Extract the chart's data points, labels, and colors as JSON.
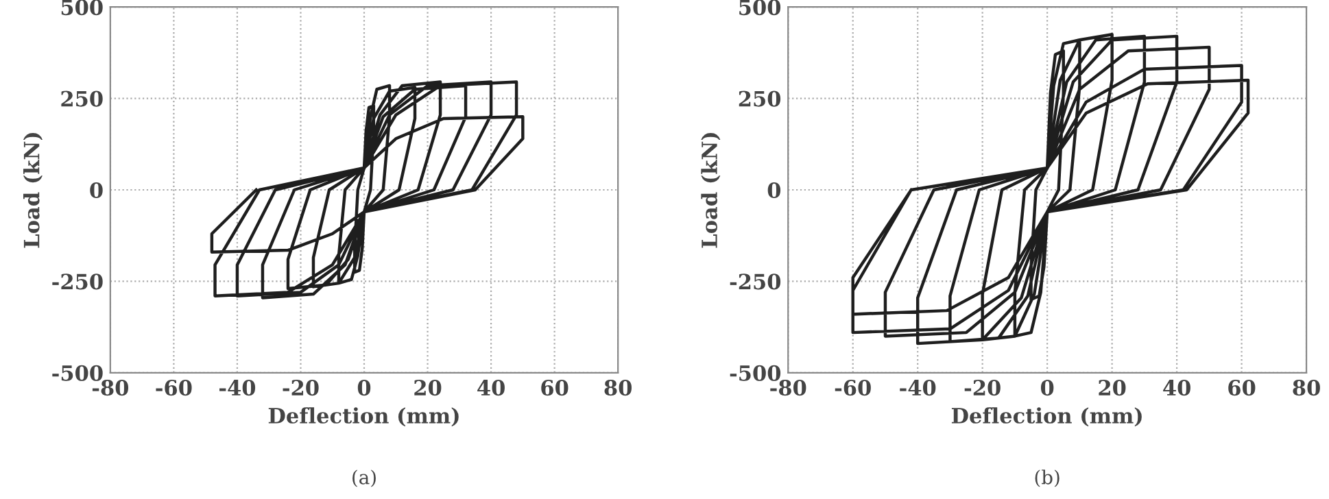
{
  "chart_data": [
    {
      "type": "line",
      "xlabel": "Deflection (mm)",
      "ylabel": "Load (kN)",
      "annotations": [
        "(a)"
      ],
      "xlim": [
        -80,
        80
      ],
      "ylim": [
        -500,
        500
      ],
      "xticks": [
        -80,
        -60,
        -40,
        -20,
        0,
        20,
        40,
        60,
        80
      ],
      "yticks": [
        -500,
        -250,
        0,
        250,
        500
      ],
      "grid": true,
      "legend": false,
      "line_style": "solid",
      "marker": "none",
      "series": [
        {
          "color": "#1e1e1e",
          "x": [
            0,
            0.6,
            1.5,
            3,
            3,
            2,
            0,
            -0.6,
            -1.5,
            -3,
            -3,
            -2,
            0,
            2,
            4,
            8,
            8,
            6,
            0,
            -2,
            -4,
            -8,
            -8,
            -6,
            0,
            3,
            8,
            16,
            16,
            11,
            0,
            -3,
            -8,
            -16,
            -16,
            -11,
            0,
            5,
            12,
            24,
            24,
            17,
            0,
            -5,
            -12,
            -24,
            -24,
            -17,
            0,
            6,
            16,
            32,
            32,
            22,
            0,
            -6,
            -16,
            -32,
            -32,
            -22,
            0,
            8,
            20,
            40,
            40,
            28,
            0,
            -8,
            -20,
            -40,
            -40,
            -28,
            0,
            10,
            24,
            48,
            48,
            34,
            0,
            -10,
            -24,
            -47,
            -47,
            -33,
            0,
            10,
            25,
            50,
            50,
            35,
            0,
            -10,
            -24,
            -48,
            -48,
            -34
          ],
          "values": [
            60,
            160,
            225,
            230,
            160,
            0,
            -60,
            -160,
            -220,
            -225,
            -160,
            0,
            60,
            200,
            275,
            285,
            200,
            0,
            -60,
            -180,
            -245,
            -255,
            -180,
            0,
            60,
            195,
            270,
            280,
            195,
            0,
            -60,
            -185,
            -255,
            -265,
            -185,
            0,
            60,
            205,
            285,
            295,
            205,
            0,
            -60,
            -190,
            -260,
            -270,
            -190,
            0,
            60,
            200,
            275,
            285,
            200,
            0,
            -60,
            -205,
            -285,
            -295,
            -205,
            0,
            60,
            205,
            285,
            295,
            205,
            0,
            -60,
            -205,
            -280,
            -290,
            -205,
            0,
            60,
            205,
            285,
            295,
            205,
            0,
            -60,
            -205,
            -280,
            -290,
            -205,
            0,
            60,
            140,
            195,
            200,
            140,
            0,
            -60,
            -120,
            -165,
            -170,
            -120,
            0
          ]
        }
      ]
    },
    {
      "type": "line",
      "xlabel": "Deflection (mm)",
      "ylabel": "Load (kN)",
      "annotations": [
        "(b)"
      ],
      "xlim": [
        -80,
        80
      ],
      "ylim": [
        -500,
        500
      ],
      "xticks": [
        -80,
        -60,
        -40,
        -20,
        0,
        20,
        40,
        60,
        80
      ],
      "yticks": [
        -500,
        -250,
        0,
        250,
        500
      ],
      "grid": true,
      "legend": false,
      "line_style": "solid",
      "marker": "none",
      "series": [
        {
          "color": "#1e1e1e",
          "x": [
            0,
            1,
            2.5,
            5,
            5,
            3.5,
            0,
            -1,
            -2.5,
            -5,
            -5,
            -3.5,
            0,
            2,
            5,
            10,
            10,
            7,
            0,
            -2,
            -5,
            -10,
            -10,
            -7,
            0,
            4,
            10,
            20,
            20,
            14,
            0,
            -4,
            -10,
            -20,
            -20,
            -14,
            0,
            6,
            15,
            30,
            30,
            21,
            0,
            -6,
            -15,
            -30,
            -30,
            -21,
            0,
            8,
            20,
            40,
            40,
            28,
            0,
            -8,
            -20,
            -40,
            -40,
            -28,
            0,
            10,
            25,
            50,
            50,
            35,
            0,
            -10,
            -25,
            -50,
            -50,
            -35,
            0,
            12,
            30,
            60,
            60,
            42,
            0,
            -12,
            -30,
            -60,
            -60,
            -42,
            0,
            12,
            31,
            62,
            62,
            43,
            0,
            -12,
            -31,
            -60,
            -60,
            -42
          ],
          "values": [
            60,
            265,
            370,
            380,
            265,
            0,
            -60,
            -210,
            -290,
            -300,
            -210,
            0,
            60,
            285,
            400,
            410,
            285,
            0,
            -60,
            -280,
            -390,
            -400,
            -280,
            0,
            60,
            300,
            410,
            425,
            300,
            0,
            -60,
            -285,
            -400,
            -410,
            -285,
            0,
            60,
            295,
            410,
            420,
            295,
            0,
            -60,
            -290,
            -405,
            -415,
            -290,
            0,
            60,
            295,
            410,
            420,
            295,
            0,
            -60,
            -295,
            -410,
            -420,
            -295,
            0,
            60,
            275,
            380,
            390,
            275,
            0,
            -60,
            -280,
            -390,
            -400,
            -280,
            0,
            60,
            240,
            330,
            340,
            240,
            0,
            -60,
            -275,
            -380,
            -390,
            -275,
            0,
            60,
            210,
            290,
            300,
            210,
            0,
            -60,
            -240,
            -330,
            -340,
            -240,
            0
          ]
        }
      ]
    }
  ]
}
